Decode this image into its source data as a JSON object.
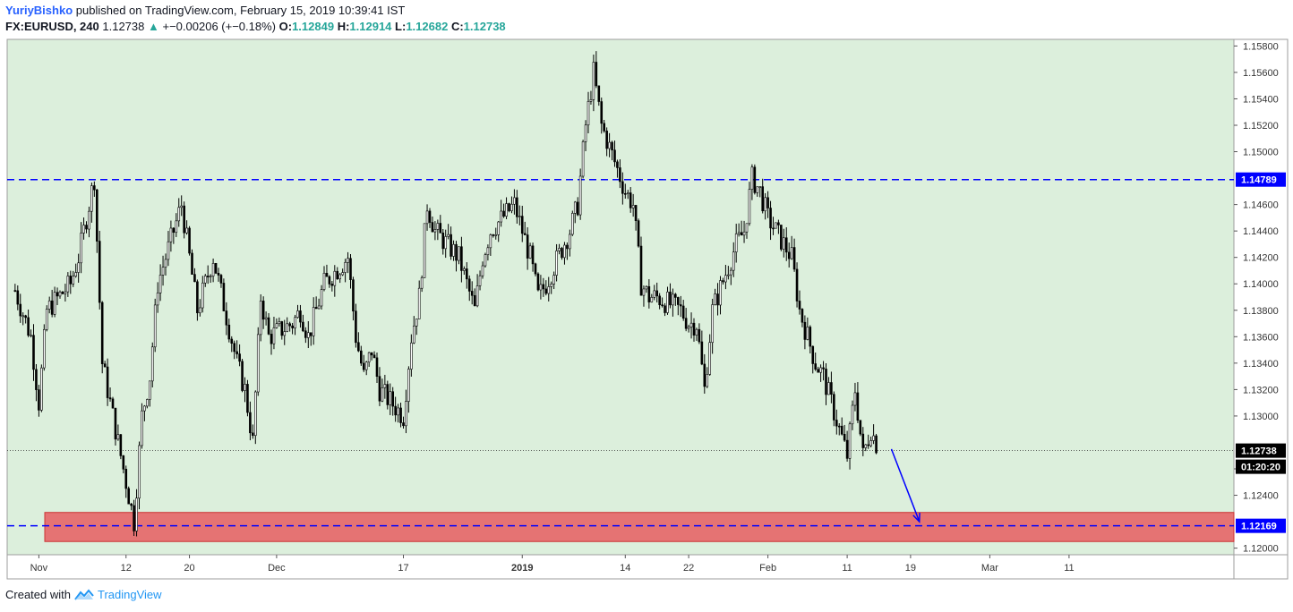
{
  "header": {
    "author": "YuriyBishko",
    "published": "published on TradingView.com, February 15, 2019 10:39:41 IST",
    "symbol": "FX:EURUSD, 240",
    "last": "1.12738",
    "change": "+−0.00206 (+−0.18%)",
    "o_label": "O:",
    "o_value": "1.12849",
    "h_label": "H:",
    "h_value": "1.12914",
    "l_label": "L:",
    "l_value": "1.12682",
    "c_label": "C:",
    "c_value": "1.12738"
  },
  "footer": {
    "created_with": "Created with",
    "brand": "TradingView"
  },
  "colors": {
    "plot_bg": "#dcefdc",
    "candle": "#000000",
    "resistance": "#0000ff",
    "support_zone": "#e57373",
    "support_zone_border": "#cc3333",
    "arrow": "#0000ff",
    "grid": "#c8ddc8"
  },
  "chart_data": {
    "type": "candlestick",
    "symbol": "FX:EURUSD",
    "interval": "240",
    "ylim": [
      1.1195,
      1.1585
    ],
    "y_ticks": [
      "1.15800",
      "1.15600",
      "1.15400",
      "1.15200",
      "1.15000",
      "1.14600",
      "1.14400",
      "1.14200",
      "1.14000",
      "1.13800",
      "1.13600",
      "1.13400",
      "1.13200",
      "1.13000",
      "1.12600",
      "1.12400",
      "1.12000"
    ],
    "x_ticks": [
      "Nov",
      "12",
      "20",
      "Dec",
      "17",
      "2019",
      "14",
      "22",
      "Feb",
      "11",
      "19",
      "Mar",
      "11"
    ],
    "x_ticks_bold": [
      "2019"
    ],
    "x_tick_dates": [
      "2018-11-01",
      "2018-11-12",
      "2018-11-20",
      "2018-12-01",
      "2018-12-17",
      "2019-01-01",
      "2019-01-14",
      "2019-01-22",
      "2019-02-01",
      "2019-02-11",
      "2019-02-19",
      "2019-03-01",
      "2019-03-11"
    ],
    "close_path": [
      [
        "2018-10-29",
        1.1395
      ],
      [
        "2018-10-31",
        1.136
      ],
      [
        "2018-11-01",
        1.131
      ],
      [
        "2018-11-02",
        1.138
      ],
      [
        "2018-11-05",
        1.14
      ],
      [
        "2018-11-06",
        1.142
      ],
      [
        "2018-11-07",
        1.145
      ],
      [
        "2018-11-08",
        1.148
      ],
      [
        "2018-11-09",
        1.134
      ],
      [
        "2018-11-12",
        1.125
      ],
      [
        "2018-11-13",
        1.122
      ],
      [
        "2018-11-14",
        1.13
      ],
      [
        "2018-11-15",
        1.133
      ],
      [
        "2018-11-16",
        1.14
      ],
      [
        "2018-11-19",
        1.146
      ],
      [
        "2018-11-20",
        1.142
      ],
      [
        "2018-11-21",
        1.138
      ],
      [
        "2018-11-22",
        1.14
      ],
      [
        "2018-11-23",
        1.142
      ],
      [
        "2018-11-26",
        1.134
      ],
      [
        "2018-11-27",
        1.132
      ],
      [
        "2018-11-28",
        1.128
      ],
      [
        "2018-11-29",
        1.139
      ],
      [
        "2018-11-30",
        1.136
      ],
      [
        "2018-12-03",
        1.137
      ],
      [
        "2018-12-04",
        1.138
      ],
      [
        "2018-12-05",
        1.136
      ],
      [
        "2018-12-06",
        1.138
      ],
      [
        "2018-12-07",
        1.14
      ],
      [
        "2018-12-10",
        1.142
      ],
      [
        "2018-12-11",
        1.136
      ],
      [
        "2018-12-12",
        1.133
      ],
      [
        "2018-12-13",
        1.135
      ],
      [
        "2018-12-14",
        1.132
      ],
      [
        "2018-12-17",
        1.13
      ],
      [
        "2018-12-18",
        1.136
      ],
      [
        "2018-12-19",
        1.139
      ],
      [
        "2018-12-20",
        1.146
      ],
      [
        "2018-12-21",
        1.144
      ],
      [
        "2018-12-24",
        1.142
      ],
      [
        "2018-12-26",
        1.138
      ],
      [
        "2018-12-27",
        1.142
      ],
      [
        "2018-12-28",
        1.144
      ],
      [
        "2018-12-31",
        1.146
      ],
      [
        "2019-01-02",
        1.142
      ],
      [
        "2019-01-03",
        1.139
      ],
      [
        "2019-01-04",
        1.14
      ],
      [
        "2019-01-07",
        1.144
      ],
      [
        "2019-01-08",
        1.146
      ],
      [
        "2019-01-09",
        1.152
      ],
      [
        "2019-01-10",
        1.156
      ],
      [
        "2019-01-11",
        1.152
      ],
      [
        "2019-01-14",
        1.147
      ],
      [
        "2019-01-15",
        1.146
      ],
      [
        "2019-01-16",
        1.14
      ],
      [
        "2019-01-17",
        1.139
      ],
      [
        "2019-01-18",
        1.139
      ],
      [
        "2019-01-21",
        1.138
      ],
      [
        "2019-01-22",
        1.137
      ],
      [
        "2019-01-23",
        1.137
      ],
      [
        "2019-01-24",
        1.132
      ],
      [
        "2019-01-25",
        1.138
      ],
      [
        "2019-01-28",
        1.143
      ],
      [
        "2019-01-29",
        1.144
      ],
      [
        "2019-01-30",
        1.148
      ],
      [
        "2019-01-31",
        1.147
      ],
      [
        "2019-02-01",
        1.145
      ],
      [
        "2019-02-04",
        1.142
      ],
      [
        "2019-02-05",
        1.138
      ],
      [
        "2019-02-06",
        1.136
      ],
      [
        "2019-02-07",
        1.134
      ],
      [
        "2019-02-08",
        1.133
      ],
      [
        "2019-02-11",
        1.127
      ],
      [
        "2019-02-12",
        1.132
      ],
      [
        "2019-02-13",
        1.127
      ],
      [
        "2019-02-14",
        1.129
      ],
      [
        "2019-02-15",
        1.12738
      ]
    ],
    "resistance_level": 1.14789,
    "support_level": 1.12169,
    "support_zone": [
      1.1205,
      1.1227
    ],
    "current_price": 1.12738,
    "current_price_label": "1.12738",
    "resistance_label": "1.14789",
    "support_label": "1.12169",
    "countdown": "01:20:20",
    "projection": {
      "from": [
        "2019-02-15",
        1.1275
      ],
      "to": [
        "2019-02-20",
        1.122
      ]
    }
  }
}
